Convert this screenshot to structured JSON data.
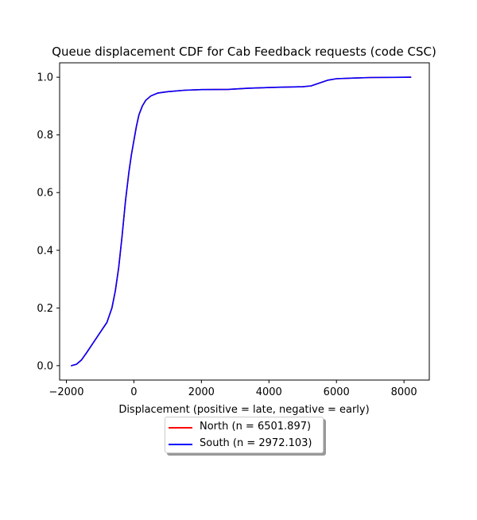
{
  "chart_data": {
    "type": "line",
    "title": "Queue displacement CDF for Cab Feedback  requests (code CSC)",
    "xlabel": "Displacement (positive = late, negative = early)",
    "ylabel": "",
    "xlim": [
      -2200,
      8750
    ],
    "ylim": [
      -0.05,
      1.05
    ],
    "xticks": [
      -2000,
      0,
      2000,
      4000,
      6000,
      8000
    ],
    "xtick_labels": [
      "−2000",
      "0",
      "2000",
      "4000",
      "6000",
      "8000"
    ],
    "yticks": [
      0.0,
      0.2,
      0.4,
      0.6,
      0.8,
      1.0
    ],
    "ytick_labels": [
      "0.0",
      "0.2",
      "0.4",
      "0.6",
      "0.8",
      "1.0"
    ],
    "grid": false,
    "legend_position": "below",
    "series": [
      {
        "name": "North (n = 6501.897)",
        "color": "#ff0000",
        "x": [
          -1850,
          -1700,
          -1550,
          -1400,
          -1200,
          -1000,
          -800,
          -650,
          -550,
          -450,
          -350,
          -250,
          -150,
          -75,
          0,
          75,
          150,
          250,
          350,
          500,
          700,
          1000,
          1500,
          2000,
          2800,
          3400,
          4200,
          5000,
          5250,
          5500,
          5750,
          6000,
          6500,
          7000,
          8200
        ],
        "y": [
          0.0,
          0.005,
          0.02,
          0.045,
          0.08,
          0.115,
          0.15,
          0.2,
          0.26,
          0.34,
          0.45,
          0.57,
          0.67,
          0.73,
          0.78,
          0.83,
          0.87,
          0.9,
          0.92,
          0.935,
          0.945,
          0.95,
          0.955,
          0.957,
          0.958,
          0.962,
          0.965,
          0.967,
          0.97,
          0.98,
          0.99,
          0.995,
          0.997,
          0.999,
          1.0
        ]
      },
      {
        "name": "South (n = 2972.103)",
        "color": "#0000ff",
        "x": [
          -1850,
          -1700,
          -1550,
          -1400,
          -1200,
          -1000,
          -800,
          -650,
          -550,
          -450,
          -350,
          -250,
          -150,
          -75,
          0,
          75,
          150,
          250,
          350,
          500,
          700,
          1000,
          1500,
          2000,
          2800,
          3400,
          4200,
          5000,
          5250,
          5500,
          5750,
          6000,
          6500,
          7000,
          8200
        ],
        "y": [
          0.0,
          0.005,
          0.02,
          0.045,
          0.08,
          0.115,
          0.15,
          0.2,
          0.26,
          0.34,
          0.45,
          0.57,
          0.67,
          0.73,
          0.78,
          0.83,
          0.87,
          0.9,
          0.92,
          0.935,
          0.945,
          0.95,
          0.955,
          0.957,
          0.958,
          0.962,
          0.965,
          0.967,
          0.97,
          0.98,
          0.99,
          0.995,
          0.997,
          0.999,
          1.0
        ]
      }
    ]
  }
}
